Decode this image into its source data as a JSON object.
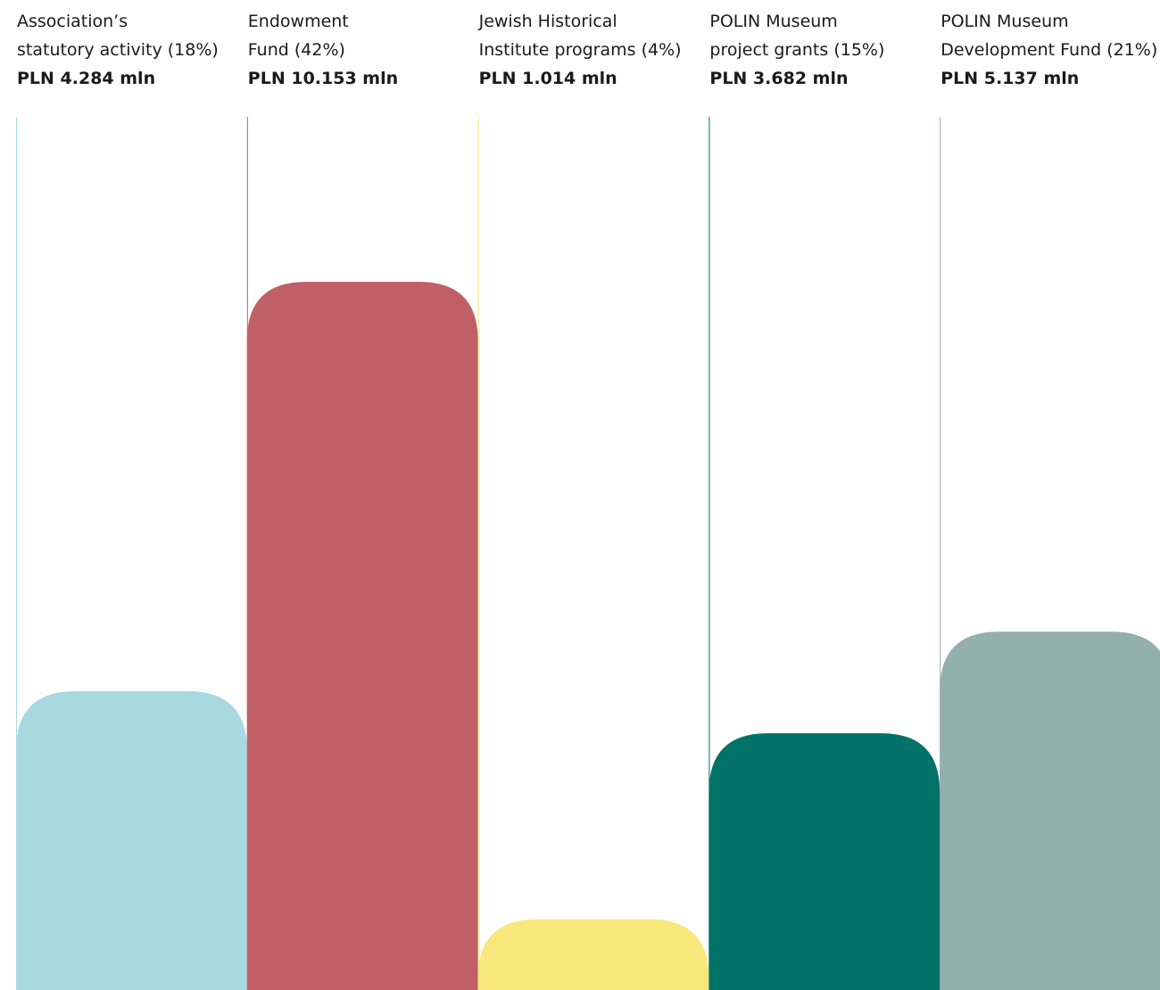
{
  "chart_data": {
    "type": "bar",
    "title": "",
    "xlabel": "",
    "ylabel": "",
    "ylim": [
      0,
      14
    ],
    "grid": false,
    "legend": "none",
    "categories": [
      {
        "lines": [
          "Association’s",
          "statutory activity (18%)"
        ],
        "value_label": "PLN 4.284 mln",
        "value": 4.284,
        "percent": 18,
        "color": "#a8d9e0"
      },
      {
        "lines": [
          "Endowment",
          "Fund (42%)"
        ],
        "value_label": "PLN 10.153 mln",
        "value": 10.153,
        "percent": 42,
        "color": "#c06066"
      },
      {
        "lines": [
          "Jewish Historical",
          "Institute programs (4%)"
        ],
        "value_label": "PLN 1.014 mln",
        "value": 1.014,
        "percent": 4,
        "color": "#f8e77b"
      },
      {
        "lines": [
          "POLIN Museum",
          "project grants (15%)"
        ],
        "value_label": "PLN 3.682 mln",
        "value": 3.682,
        "percent": 15,
        "color": "#007268"
      },
      {
        "lines": [
          "POLIN Museum",
          "Development Fund (21%)"
        ],
        "value_label": "PLN 5.137 mln",
        "value": 5.137,
        "percent": 21,
        "color": "#93afae"
      }
    ]
  }
}
